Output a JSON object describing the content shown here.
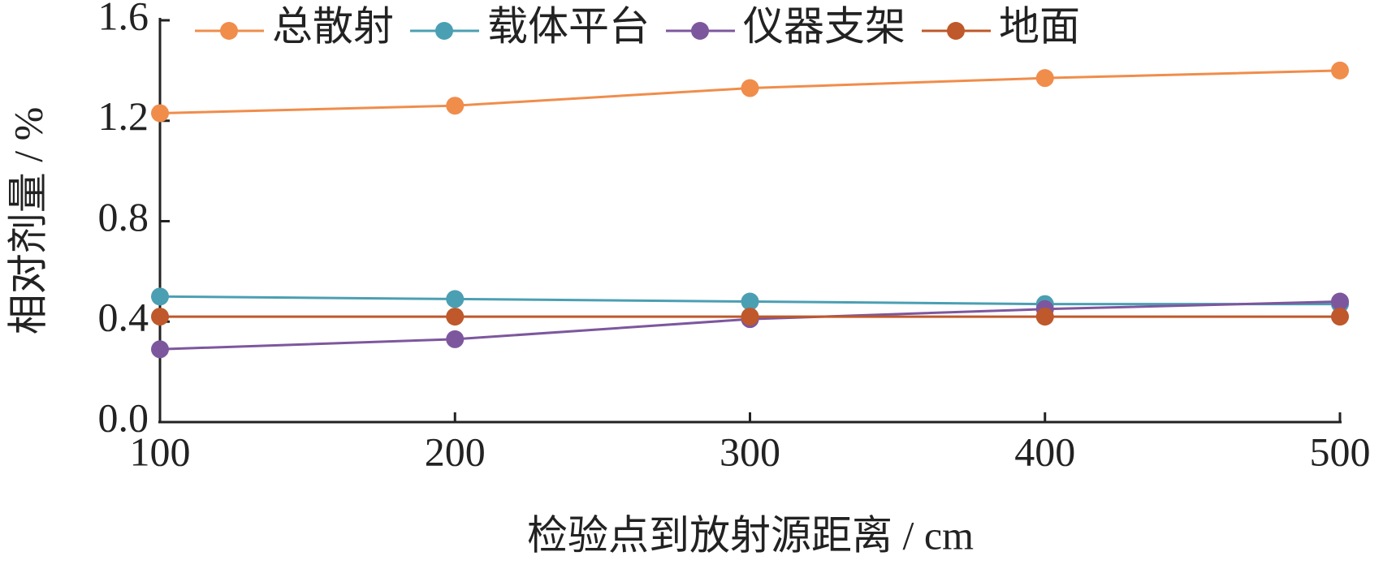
{
  "chart_data": {
    "type": "line",
    "x_label": "检验点到放射源距离 / cm",
    "y_label": "相对剂量 / %",
    "x": [
      100,
      200,
      300,
      400,
      500
    ],
    "xlim": [
      100,
      500
    ],
    "xticks": [
      100,
      200,
      300,
      400,
      500
    ],
    "ylim": [
      0,
      1.6
    ],
    "yticks": [
      {
        "value": 0,
        "label": "0.0"
      },
      0.4,
      0.8,
      1.2,
      1.6
    ],
    "legend": "top",
    "series": [
      {
        "name": "总散射",
        "color": "#f08d4b",
        "values": [
          1.23,
          1.26,
          1.33,
          1.37,
          1.4
        ]
      },
      {
        "name": "载体平台",
        "color": "#4b9fb3",
        "values": [
          0.5,
          0.49,
          0.48,
          0.47,
          0.47
        ]
      },
      {
        "name": "仪器支架",
        "color": "#7d579e",
        "values": [
          0.29,
          0.33,
          0.41,
          0.45,
          0.48
        ]
      },
      {
        "name": "地面",
        "color": "#bf582a",
        "values": [
          0.42,
          0.42,
          0.42,
          0.42,
          0.42
        ]
      }
    ]
  }
}
